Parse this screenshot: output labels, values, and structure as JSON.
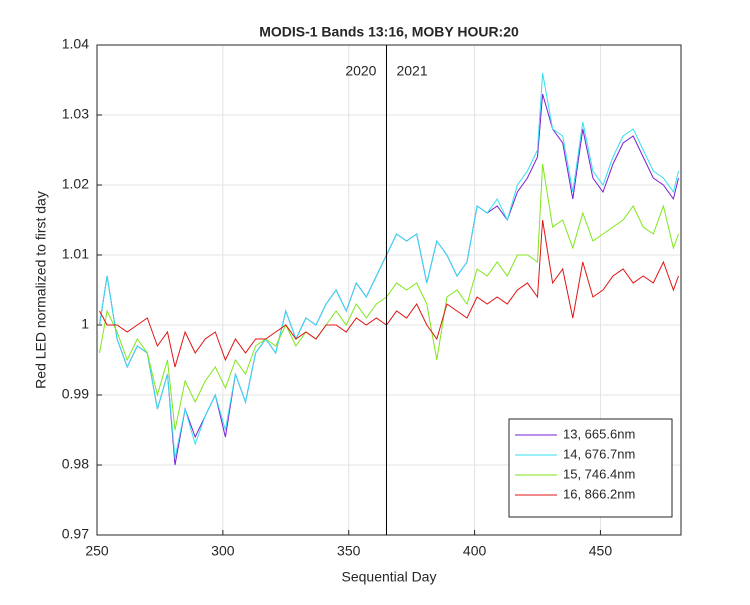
{
  "chart_data": {
    "type": "line",
    "title": "MODIS-1 Bands 13:16, MOBY HOUR:20",
    "xlabel": "Sequential Day",
    "ylabel": "Red LED normalized to first day",
    "xlim": [
      250,
      482
    ],
    "ylim": [
      0.97,
      1.04
    ],
    "xticks": [
      250,
      300,
      350,
      400,
      450
    ],
    "yticks": [
      0.97,
      0.98,
      0.99,
      1,
      1.01,
      1.02,
      1.03,
      1.04
    ],
    "grid": true,
    "legend": "southeast",
    "vline": 365,
    "annotations": [
      "2020",
      "2021"
    ],
    "x": [
      251,
      254,
      258,
      262,
      266,
      270,
      274,
      278,
      281,
      285,
      289,
      293,
      297,
      301,
      305,
      309,
      313,
      317,
      321,
      325,
      329,
      333,
      337,
      341,
      345,
      349,
      353,
      357,
      361,
      365,
      369,
      373,
      377,
      381,
      385,
      389,
      393,
      397,
      401,
      405,
      409,
      413,
      417,
      421,
      425,
      427,
      431,
      435,
      439,
      443,
      447,
      451,
      455,
      459,
      463,
      467,
      471,
      475,
      479,
      481
    ],
    "series": [
      {
        "name": "13, 665.6nm",
        "color": "#7a1fd6",
        "values": [
          1.0,
          1.007,
          0.998,
          0.994,
          0.997,
          0.996,
          0.988,
          0.993,
          0.98,
          0.988,
          0.984,
          0.987,
          0.99,
          0.984,
          0.993,
          0.989,
          0.996,
          0.998,
          0.996,
          1.002,
          0.998,
          1.001,
          1.0,
          1.003,
          1.005,
          1.002,
          1.006,
          1.004,
          1.007,
          1.01,
          1.013,
          1.012,
          1.013,
          1.006,
          1.012,
          1.01,
          1.007,
          1.009,
          1.017,
          1.016,
          1.017,
          1.015,
          1.019,
          1.021,
          1.024,
          1.033,
          1.028,
          1.026,
          1.018,
          1.028,
          1.021,
          1.019,
          1.023,
          1.026,
          1.027,
          1.024,
          1.021,
          1.02,
          1.018,
          1.021
        ]
      },
      {
        "name": "14, 676.7nm",
        "color": "#33e0ee",
        "values": [
          1.0,
          1.007,
          0.998,
          0.994,
          0.997,
          0.996,
          0.988,
          0.993,
          0.981,
          0.988,
          0.983,
          0.987,
          0.99,
          0.985,
          0.993,
          0.989,
          0.996,
          0.998,
          0.996,
          1.002,
          0.998,
          1.001,
          1.0,
          1.003,
          1.005,
          1.002,
          1.006,
          1.004,
          1.007,
          1.01,
          1.013,
          1.012,
          1.013,
          1.006,
          1.012,
          1.01,
          1.007,
          1.009,
          1.017,
          1.016,
          1.018,
          1.015,
          1.02,
          1.022,
          1.025,
          1.036,
          1.028,
          1.027,
          1.019,
          1.029,
          1.022,
          1.02,
          1.024,
          1.027,
          1.028,
          1.025,
          1.022,
          1.021,
          1.019,
          1.022
        ]
      },
      {
        "name": "15, 746.4nm",
        "color": "#80e61a",
        "values": [
          0.996,
          1.002,
          0.999,
          0.995,
          0.998,
          0.996,
          0.99,
          0.995,
          0.985,
          0.992,
          0.989,
          0.992,
          0.994,
          0.991,
          0.995,
          0.993,
          0.997,
          0.998,
          0.997,
          1.0,
          0.997,
          0.999,
          0.998,
          1.0,
          1.002,
          1.0,
          1.003,
          1.001,
          1.003,
          1.004,
          1.006,
          1.005,
          1.006,
          1.003,
          0.995,
          1.004,
          1.005,
          1.003,
          1.008,
          1.007,
          1.009,
          1.007,
          1.01,
          1.01,
          1.009,
          1.023,
          1.014,
          1.015,
          1.011,
          1.016,
          1.012,
          1.013,
          1.014,
          1.015,
          1.017,
          1.014,
          1.013,
          1.017,
          1.011,
          1.013
        ]
      },
      {
        "name": "16, 866.2nm",
        "color": "#e01414",
        "values": [
          1.002,
          1.0,
          1.0,
          0.999,
          1.0,
          1.001,
          0.997,
          0.999,
          0.994,
          0.999,
          0.996,
          0.998,
          0.999,
          0.995,
          0.998,
          0.996,
          0.998,
          0.998,
          0.999,
          1.0,
          0.998,
          0.999,
          0.998,
          1.0,
          1.0,
          0.999,
          1.001,
          1.0,
          1.001,
          1.0,
          1.002,
          1.001,
          1.003,
          1.0,
          0.998,
          1.003,
          1.002,
          1.001,
          1.004,
          1.003,
          1.004,
          1.003,
          1.005,
          1.006,
          1.004,
          1.015,
          1.006,
          1.008,
          1.001,
          1.009,
          1.004,
          1.005,
          1.007,
          1.008,
          1.006,
          1.007,
          1.006,
          1.009,
          1.005,
          1.007
        ]
      }
    ]
  }
}
